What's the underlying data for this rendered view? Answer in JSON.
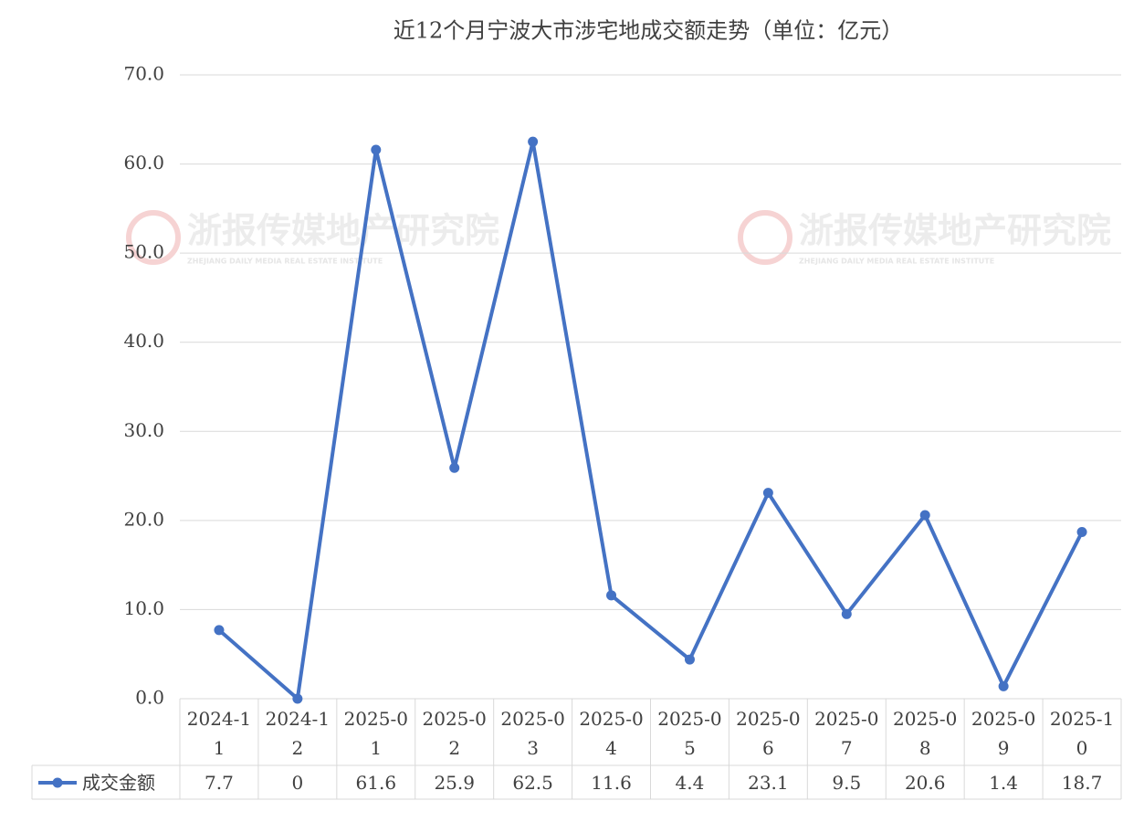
{
  "chart_data": {
    "type": "line",
    "title": "近12个月宁波大市涉宅地成交额走势（单位：亿元）",
    "watermark": {
      "text": "浙报传媒地产研究院",
      "subtext": "ZHEJIANG DAILY MEDIA REAL ESTATE INSTITUTE"
    },
    "categories": [
      "2024-11",
      "2024-12",
      "2025-01",
      "2025-02",
      "2025-03",
      "2025-04",
      "2025-05",
      "2025-06",
      "2025-07",
      "2025-08",
      "2025-09",
      "2025-10"
    ],
    "series": [
      {
        "name": "成交金额",
        "color": "#4472c4",
        "values": [
          7.7,
          0,
          61.6,
          25.9,
          62.5,
          11.6,
          4.4,
          23.1,
          9.5,
          20.6,
          1.4,
          18.7
        ]
      }
    ],
    "ylim": [
      0,
      70
    ],
    "yticks": [
      {
        "value": 0,
        "label": "0.0"
      },
      {
        "value": 10,
        "label": "10.0"
      },
      {
        "value": 20,
        "label": "20.0"
      },
      {
        "value": 30,
        "label": "30.0"
      },
      {
        "value": 40,
        "label": "40.0"
      },
      {
        "value": 50,
        "label": "50.0"
      },
      {
        "value": 60,
        "label": "60.0"
      },
      {
        "value": 70,
        "label": "70.0"
      }
    ],
    "grid": true,
    "data_table": true
  }
}
